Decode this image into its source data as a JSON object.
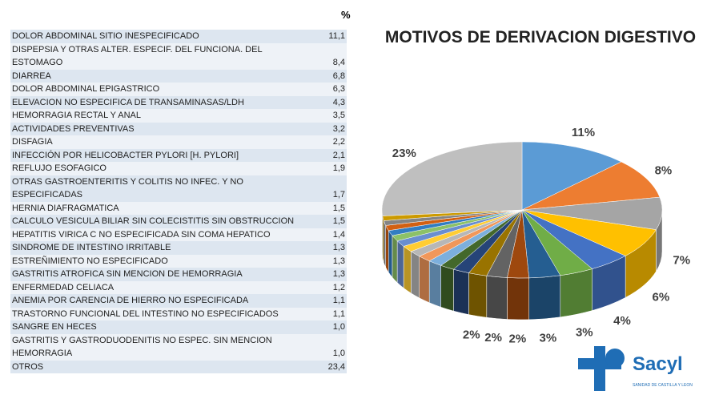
{
  "table": {
    "header": "%",
    "rows": [
      [
        "DOLOR ABDOMINAL SITIO INESPECIFICADO",
        "11,1"
      ],
      [
        "DISPEPSIA Y OTRAS ALTER. ESPECIF. DEL FUNCIONA. DEL ESTOMAGO",
        "8,4"
      ],
      [
        "DIARREA",
        "6,8"
      ],
      [
        "DOLOR ABDOMINAL EPIGASTRICO",
        "6,3"
      ],
      [
        "ELEVACION NO ESPECIFICA DE TRANSAMINASAS/LDH",
        "4,3"
      ],
      [
        "HEMORRAGIA RECTAL Y ANAL",
        "3,5"
      ],
      [
        "ACTIVIDADES PREVENTIVAS",
        "3,2"
      ],
      [
        "DISFAGIA",
        "2,2"
      ],
      [
        "INFECCIÓN POR HELICOBACTER PYLORI [H. PYLORI]",
        "2,1"
      ],
      [
        "REFLUJO ESOFAGICO",
        "1,9"
      ],
      [
        "OTRAS GASTROENTERITIS Y COLITIS NO INFEC. Y NO ESPECIFICADAS",
        "1,7"
      ],
      [
        "HERNIA DIAFRAGMATICA",
        "1,5"
      ],
      [
        "CALCULO VESICULA BILIAR SIN COLECISTITIS SIN OBSTRUCCION",
        "1,5"
      ],
      [
        "HEPATITIS VIRICA C NO ESPECIFICADA SIN COMA HEPATICO",
        "1,4"
      ],
      [
        "SINDROME DE INTESTINO IRRITABLE",
        "1,3"
      ],
      [
        "ESTREÑIMIENTO NO ESPECIFICADO",
        "1,3"
      ],
      [
        "GASTRITIS ATROFICA SIN MENCION DE HEMORRAGIA",
        "1,3"
      ],
      [
        "ENFERMEDAD CELIACA",
        "1,2"
      ],
      [
        "ANEMIA POR CARENCIA DE HIERRO NO ESPECIFICADA",
        "1,1"
      ],
      [
        "TRASTORNO FUNCIONAL DEL INTESTINO NO ESPECIFICADOS",
        "1,1"
      ],
      [
        "SANGRE EN HECES",
        "1,0"
      ],
      [
        "GASTRITIS Y GASTRODUODENITIS NO ESPEC. SIN MENCION HEMORRAGIA",
        "1,0"
      ],
      [
        "OTROS",
        "23,4"
      ]
    ]
  },
  "chart_data": {
    "type": "pie",
    "title": "MOTIVOS DE DERIVACION DIGESTIVO",
    "values": [
      11.1,
      8.4,
      6.8,
      6.3,
      4.3,
      3.5,
      3.2,
      2.2,
      2.1,
      1.9,
      1.7,
      1.5,
      1.5,
      1.4,
      1.3,
      1.3,
      1.3,
      1.2,
      1.1,
      1.1,
      1.0,
      1.0,
      23.4
    ],
    "value_labels": [
      "11%",
      "8%",
      "7%",
      "6%",
      "4%",
      "3%",
      "3%",
      "2%",
      "2%",
      "2%",
      null,
      null,
      null,
      null,
      null,
      null,
      null,
      null,
      null,
      null,
      null,
      null,
      "23%"
    ],
    "colors": [
      "#5b9bd5",
      "#ed7d31",
      "#a5a5a5",
      "#ffc000",
      "#4472c4",
      "#70ad47",
      "#255e91",
      "#9e480e",
      "#636363",
      "#997300",
      "#264478",
      "#43682b",
      "#7cafdd",
      "#f1975a",
      "#b7b7b7",
      "#ffcd33",
      "#698ed0",
      "#8cc168",
      "#327dc2",
      "#d26012",
      "#848484",
      "#cc9a00",
      "#bfbfbf"
    ]
  },
  "logo": {
    "name": "Sacyl",
    "subtitle": "SANIDAD DE CASTILLA Y LEON"
  }
}
